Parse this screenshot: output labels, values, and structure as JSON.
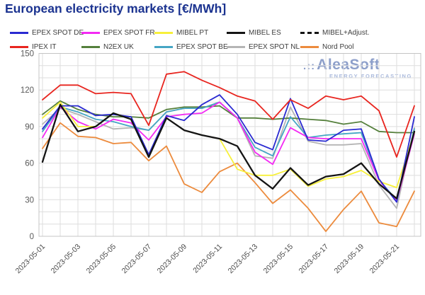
{
  "title": "European electricity markets [€/MWh]",
  "watermark": {
    "dots": ".::",
    "name": "AleaSoft",
    "tagline": "ENERGY FORECASTING"
  },
  "colors": {
    "title": "#1b3390",
    "axis_text": "#595959",
    "x_tick_text": "#4a4a4a",
    "grid": "#dedede",
    "plot_border": "#c4c4c4",
    "watermark": "#7188bd",
    "watermark_tagline": "#96a9d4"
  },
  "chart_data": {
    "type": "line",
    "title": "European electricity markets [€/MWh]",
    "xlabel": "",
    "ylabel": "",
    "ylim": [
      0,
      150
    ],
    "y_ticks": [
      0,
      30,
      60,
      90,
      120,
      150
    ],
    "grid": true,
    "legend_position": "top",
    "x": [
      "2023-05-01",
      "2023-05-02",
      "2023-05-03",
      "2023-05-04",
      "2023-05-05",
      "2023-05-06",
      "2023-05-07",
      "2023-05-08",
      "2023-05-09",
      "2023-05-10",
      "2023-05-11",
      "2023-05-12",
      "2023-05-13",
      "2023-05-14",
      "2023-05-15",
      "2023-05-16",
      "2023-05-17",
      "2023-05-18",
      "2023-05-19",
      "2023-05-20",
      "2023-05-21",
      "2023-05-22"
    ],
    "x_tick_labels": [
      "2023-05-01",
      "2023-05-03",
      "2023-05-05",
      "2023-05-07",
      "2023-05-09",
      "2023-05-11",
      "2023-05-13",
      "2023-05-15",
      "2023-05-17",
      "2023-05-19",
      "2023-05-21"
    ],
    "series": [
      {
        "name": "EPEX SPOT DE",
        "color": "#2a2ad1",
        "dash": false,
        "values": [
          88,
          107,
          107,
          99,
          100,
          98,
          67,
          99,
          95,
          108,
          116,
          100,
          77,
          71,
          113,
          79,
          78,
          87,
          88,
          47,
          28,
          98
        ]
      },
      {
        "name": "EPEX SPOT FR",
        "color": "#f32af3",
        "dash": false,
        "values": [
          81,
          106,
          94,
          88,
          96,
          93,
          79,
          98,
          100,
          101,
          110,
          97,
          69,
          59,
          89,
          81,
          80,
          80,
          80,
          46,
          29,
          84
        ]
      },
      {
        "name": "MIBEL PT",
        "color": "#f7f03a",
        "dash": false,
        "values": [
          97,
          110,
          90,
          90,
          101,
          96,
          65,
          97,
          87,
          83,
          80,
          55,
          50,
          50,
          55,
          41,
          47,
          49,
          54,
          45,
          40,
          85
        ]
      },
      {
        "name": "MIBEL ES",
        "color": "#141414",
        "dash": false,
        "values": [
          61,
          108,
          86,
          90,
          101,
          96,
          65,
          97,
          87,
          83,
          80,
          74,
          50,
          39,
          56,
          42,
          49,
          51,
          60,
          43,
          31,
          86
        ]
      },
      {
        "name": "MIBEL+Adjust.",
        "color": "#141414",
        "dash": true,
        "values": [
          61,
          108,
          86,
          90,
          101,
          96,
          65,
          97,
          87,
          83,
          80,
          74,
          50,
          39,
          56,
          42,
          49,
          51,
          60,
          43,
          31,
          86
        ]
      },
      {
        "name": "IPEX IT",
        "color": "#e8251f",
        "dash": false,
        "values": [
          112,
          124,
          124,
          117,
          118,
          117,
          91,
          133,
          135,
          128,
          122,
          115,
          111,
          96,
          112,
          105,
          115,
          112,
          115,
          103,
          65,
          107
        ]
      },
      {
        "name": "N2EX UK",
        "color": "#55803c",
        "dash": false,
        "values": [
          100,
          111,
          104,
          100,
          98,
          98,
          97,
          104,
          106,
          106,
          107,
          97,
          97,
          96,
          97,
          96,
          95,
          92,
          94,
          86,
          85,
          85
        ]
      },
      {
        "name": "EPEX SPOT BE",
        "color": "#45a5c4",
        "dash": false,
        "values": [
          86,
          106,
          102,
          96,
          94,
          90,
          87,
          102,
          105,
          105,
          110,
          97,
          73,
          66,
          98,
          81,
          83,
          84,
          85,
          46,
          30,
          88
        ]
      },
      {
        "name": "EPEX SPOT NL",
        "color": "#b5b5b5",
        "dash": false,
        "values": [
          92,
          105,
          100,
          94,
          88,
          89,
          87,
          102,
          105,
          105,
          110,
          97,
          66,
          64,
          106,
          78,
          75,
          75,
          76,
          42,
          23,
          89
        ]
      },
      {
        "name": "Nord Pool",
        "color": "#ec8b3d",
        "dash": false,
        "values": [
          72,
          93,
          82,
          81,
          76,
          77,
          62,
          74,
          43,
          36,
          53,
          60,
          44,
          27,
          38,
          23,
          4,
          22,
          37,
          11,
          8,
          37
        ]
      }
    ]
  },
  "legend": {
    "row1_indices": [
      0,
      1,
      2,
      3,
      4
    ],
    "row2_indices": [
      5,
      6,
      7,
      8,
      9
    ]
  }
}
